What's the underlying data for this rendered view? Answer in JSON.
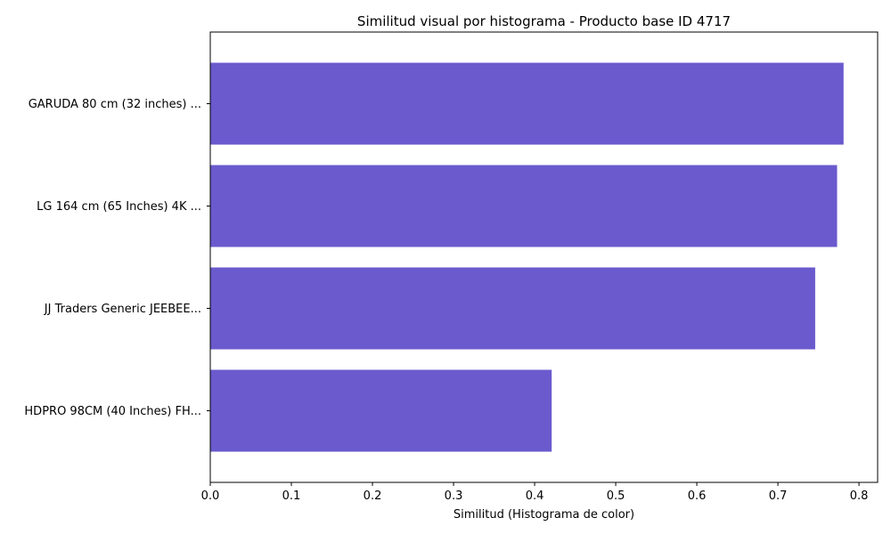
{
  "chart_data": {
    "type": "bar",
    "orientation": "horizontal",
    "title": "Similitud visual por histograma - Producto base ID 4717",
    "xlabel": "Similitud (Histograma de color)",
    "ylabel": "",
    "categories": [
      "GARUDA 80 cm (32 inches) ...",
      "LG 164 cm (65 Inches) 4K ...",
      "JJ Traders Generic JEEBEE...",
      "HDPRO 98CM (40 Inches) FH..."
    ],
    "values": [
      0.781,
      0.773,
      0.746,
      0.421
    ],
    "xlim": [
      0,
      0.823
    ],
    "xticks": [
      "0.0",
      "0.1",
      "0.2",
      "0.3",
      "0.4",
      "0.5",
      "0.6",
      "0.7",
      "0.8"
    ],
    "grid": false,
    "bar_color": "#6a5acd"
  }
}
